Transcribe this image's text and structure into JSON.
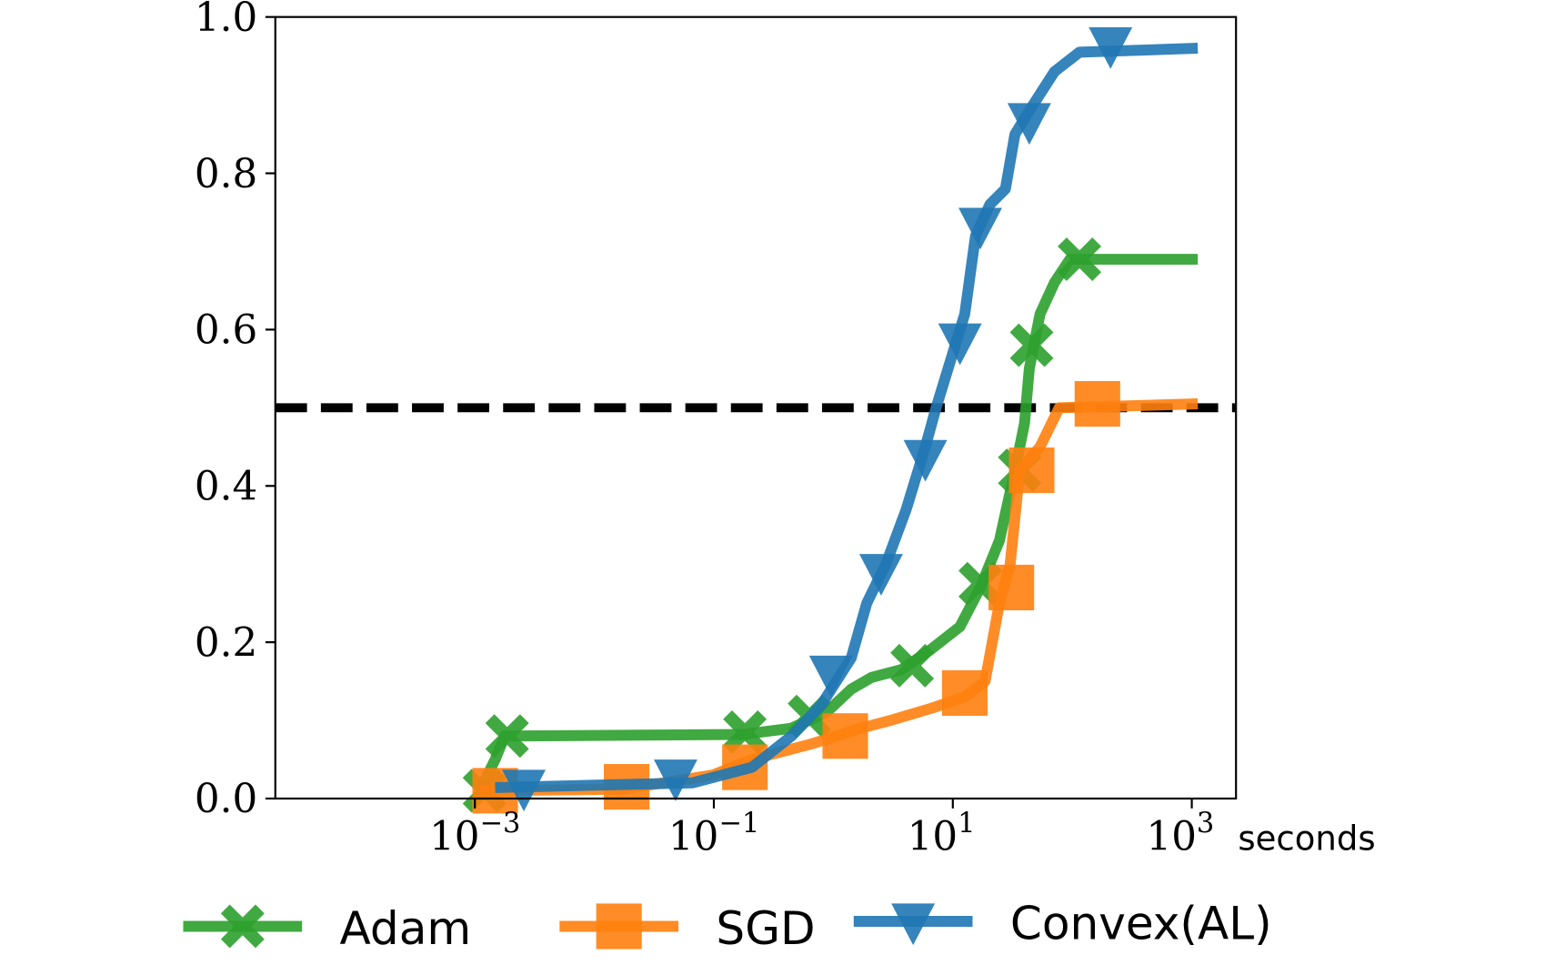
{
  "chart_data": {
    "type": "line",
    "title": "",
    "xlabel": "seconds",
    "ylabel": "",
    "xscale": "log",
    "xlim_log10": [
      -4.67,
      3.37
    ],
    "ylim": [
      0,
      1
    ],
    "grid": false,
    "legend_position": "bottom",
    "y_ticks": [
      "0.0",
      "0.2",
      "0.4",
      "0.6",
      "0.8",
      "1.0"
    ],
    "y_tick_values": [
      0,
      0.2,
      0.4,
      0.6,
      0.8,
      1.0
    ],
    "x_ticks": [
      {
        "base": "10",
        "exp": "−3",
        "log10": -3
      },
      {
        "base": "10",
        "exp": "−1",
        "log10": -1
      },
      {
        "base": "10",
        "exp": "1",
        "log10": 1
      },
      {
        "base": "10",
        "exp": "3",
        "log10": 3
      }
    ],
    "reference_line": {
      "y": 0.5,
      "style": "dashed",
      "color": "#000000"
    },
    "series": [
      {
        "name": "Adam",
        "color": "#2ca02c",
        "marker": "X",
        "log10_x": [
          -2.96,
          -2.83,
          -2.75,
          -0.76,
          -0.35,
          -0.06,
          0.15,
          0.32,
          0.57,
          0.81,
          1.06,
          1.23,
          1.39,
          1.52,
          1.6,
          1.64,
          1.73,
          1.85,
          1.98,
          3.05
        ],
        "y": [
          0.01,
          0.05,
          0.08,
          0.082,
          0.09,
          0.11,
          0.14,
          0.155,
          0.165,
          0.19,
          0.22,
          0.27,
          0.33,
          0.42,
          0.48,
          0.55,
          0.62,
          0.66,
          0.69,
          0.69
        ],
        "markers_log10_x": [
          -2.92,
          -2.73,
          -0.74,
          -0.2,
          0.66,
          1.23,
          1.56,
          1.66,
          2.06
        ],
        "markers_y": [
          0.01,
          0.08,
          0.085,
          0.105,
          0.17,
          0.275,
          0.42,
          0.58,
          0.69
        ]
      },
      {
        "name": "SGD",
        "color": "#ff7f0e",
        "marker": "s",
        "log10_x": [
          -2.96,
          -1.76,
          -1.01,
          -0.68,
          -0.18,
          0.23,
          0.48,
          0.81,
          1.1,
          1.27,
          1.39,
          1.48,
          1.56,
          1.73,
          1.89,
          3.05
        ],
        "y": [
          0.01,
          0.012,
          0.03,
          0.05,
          0.07,
          0.09,
          0.1,
          0.115,
          0.13,
          0.15,
          0.25,
          0.3,
          0.42,
          0.45,
          0.5,
          0.505
        ],
        "markers_log10_x": [
          -2.83,
          -1.73,
          -0.74,
          0.1,
          1.1,
          1.49,
          1.66,
          2.21
        ],
        "markers_y": [
          0.01,
          0.015,
          0.04,
          0.08,
          0.135,
          0.27,
          0.42,
          0.505
        ]
      },
      {
        "name": "Convex(AL)",
        "color": "#1f77b4",
        "marker": "v",
        "log10_x": [
          -2.83,
          -1.18,
          -0.68,
          -0.35,
          -0.1,
          0.15,
          0.28,
          0.44,
          0.61,
          0.77,
          0.86,
          0.98,
          1.1,
          1.19,
          1.31,
          1.44,
          1.52,
          1.64,
          1.85,
          2.06,
          3.05
        ],
        "y": [
          0.014,
          0.02,
          0.04,
          0.08,
          0.12,
          0.18,
          0.25,
          0.3,
          0.37,
          0.45,
          0.5,
          0.56,
          0.62,
          0.72,
          0.76,
          0.78,
          0.85,
          0.88,
          0.93,
          0.955,
          0.96
        ],
        "markers_log10_x": [
          -2.59,
          -1.32,
          -0.02,
          0.4,
          0.77,
          1.06,
          1.23,
          1.64,
          2.32
        ],
        "markers_y": [
          0.014,
          0.027,
          0.16,
          0.29,
          0.436,
          0.585,
          0.733,
          0.867,
          0.964
        ]
      }
    ]
  }
}
